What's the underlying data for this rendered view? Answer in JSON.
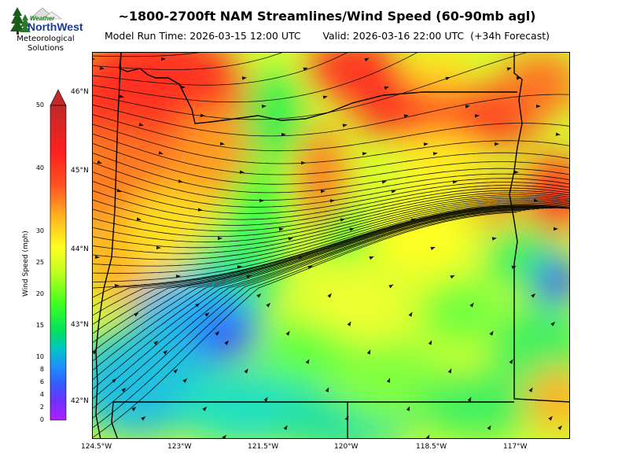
{
  "header": {
    "title": "~1800-2700ft NAM Streamlines/Wind Speed (60-90mb agl)",
    "subtitle_run": "Model Run Time: 2026-03-15 12:00 UTC",
    "subtitle_valid": "Valid: 2026-03-16 22:00 UTC  (+34h Forecast)"
  },
  "logo": {
    "name_top": "Weather",
    "name_bottom": "NorthWest",
    "tagline_line1": "Meteorological",
    "tagline_line2": "Solutions"
  },
  "map": {
    "lat_labels": [
      "46°N",
      "45°N",
      "44°N",
      "43°N",
      "42°N"
    ],
    "lon_labels": [
      "124.5°W",
      "123°W",
      "121.5°W",
      "120°W",
      "118.5°W",
      "117°W"
    ]
  },
  "colorbar": {
    "title": "Wind Speed (mph)",
    "ticks": [
      "50",
      "40",
      "30",
      "25",
      "20",
      "15",
      "10",
      "8",
      "6",
      "4",
      "2",
      "0"
    ]
  },
  "colors": {
    "calm": "#a020f0",
    "light": "#1e90ff",
    "moderate": "#00e060",
    "fresh": "#ffff20",
    "strong": "#ff8000",
    "very_strong": "#ff2020",
    "extreme": "#c02020"
  }
}
